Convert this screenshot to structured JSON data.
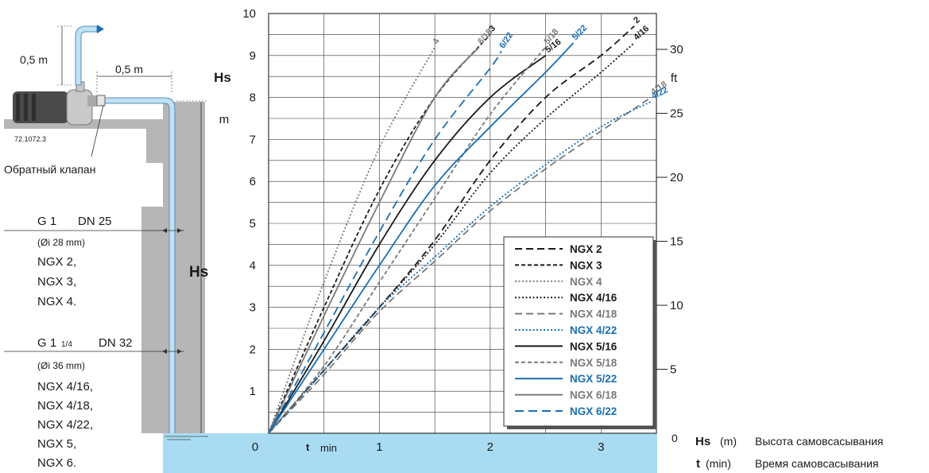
{
  "diagram": {
    "label_vertical_pipe_height": "0,5 m",
    "label_horizontal_pipe_length": "0,5 m",
    "pump_code": "72.1072.3",
    "check_valve_label": "Обратный клапан",
    "hs_label": "Hs",
    "pipe_spec_1": {
      "thread": "G 1",
      "dn": "DN 25",
      "inner_diameter": "(Øi 28 mm)",
      "models": [
        "NGX 2,",
        "NGX 3,",
        "NGX 4."
      ]
    },
    "pipe_spec_2": {
      "thread": "G 1",
      "thread_fraction": "1/4",
      "dn": "DN 32",
      "inner_diameter": "(Øi 36 mm)",
      "models": [
        "NGX 4/16,",
        "NGX 4/18,",
        "NGX 4/22,",
        "NGX 5,",
        "NGX 6."
      ]
    }
  },
  "footer": {
    "hs_symbol": "Hs",
    "hs_unit": "(m)",
    "hs_desc": "Высота самовсасывания",
    "t_symbol": "t",
    "t_unit": "(min)",
    "t_desc": "Время самовсасывания"
  },
  "colors": {
    "black": "#1a1a1a",
    "gray": "#7a7a7a",
    "blue": "#1a6fb5",
    "water": "#a9dcf2",
    "pipe": "#bfe2f4",
    "ground": "#b6b6b6"
  },
  "chart_data": {
    "type": "line",
    "xlabel_symbol": "t",
    "xlabel_unit": "min",
    "ylabel_left_symbol": "Hs",
    "ylabel_left_unit": "m",
    "ylabel_right_unit": "ft",
    "xlim": [
      0,
      3.5
    ],
    "ylim": [
      0,
      10
    ],
    "y2lim": [
      0,
      32.8
    ],
    "x_ticks": [
      "0",
      "1",
      "2",
      "3"
    ],
    "y_ticks": [
      "1",
      "2",
      "3",
      "4",
      "5",
      "6",
      "7",
      "8",
      "9",
      "10"
    ],
    "y2_ticks": [
      "5",
      "10",
      "15",
      "20",
      "25",
      "30"
    ],
    "origin_label": "0",
    "grid": true,
    "legend_position": "bottom-right",
    "series": [
      {
        "name": "NGX 2",
        "end_label": "2",
        "color": "black",
        "dash": "9,5",
        "x": [
          0,
          0.5,
          1,
          1.5,
          2,
          2.5,
          3,
          3.3
        ],
        "y": [
          0,
          1.5,
          3,
          4.6,
          6.5,
          8,
          9,
          9.7
        ]
      },
      {
        "name": "NGX 3",
        "end_label": "3",
        "color": "black",
        "dash": "5,3",
        "x": [
          0,
          0.5,
          1,
          1.5,
          2
        ],
        "y": [
          0,
          3,
          5.8,
          8,
          9.5
        ]
      },
      {
        "name": "NGX 4",
        "end_label": "4",
        "color": "gray",
        "dash": "2,2.5",
        "x": [
          0,
          0.5,
          1,
          1.5
        ],
        "y": [
          0,
          3.6,
          6.8,
          9.2
        ]
      },
      {
        "name": "NGX 4/16",
        "end_label": "4/16",
        "color": "black",
        "dash": "2,2.5",
        "x": [
          0,
          0.5,
          1,
          1.5,
          2,
          2.5,
          3,
          3.3
        ],
        "y": [
          0,
          1.5,
          3,
          4.5,
          6.2,
          7.5,
          8.6,
          9.3
        ]
      },
      {
        "name": "NGX 4/18",
        "end_label": "4/18",
        "color": "gray",
        "dash": "9,5",
        "x": [
          0,
          0.5,
          1,
          1.5,
          2,
          2.5,
          3,
          3.45
        ],
        "y": [
          0,
          1.4,
          2.9,
          4.1,
          5.3,
          6.3,
          7.2,
          8
        ]
      },
      {
        "name": "NGX 4/22",
        "end_label": "4/22",
        "color": "blue",
        "dash": "2,2.5",
        "x": [
          0,
          0.5,
          1,
          1.5,
          2,
          2.5,
          3,
          3.45
        ],
        "y": [
          0,
          1.5,
          3,
          4.2,
          5.4,
          6.4,
          7.3,
          7.9
        ]
      },
      {
        "name": "NGX 5/16",
        "end_label": "5/16",
        "color": "black",
        "dash": "",
        "x": [
          0,
          0.5,
          1,
          1.5,
          2,
          2.5
        ],
        "y": [
          0,
          2.2,
          4.5,
          6.5,
          8,
          9
        ]
      },
      {
        "name": "NGX 5/18",
        "end_label": "5/18",
        "color": "gray",
        "dash": "5,3",
        "x": [
          0,
          0.5,
          1,
          1.5,
          2,
          2.5
        ],
        "y": [
          0,
          1.6,
          3.6,
          5.6,
          7.6,
          9.2
        ]
      },
      {
        "name": "NGX 5/22",
        "end_label": "5/22",
        "color": "blue",
        "dash": "",
        "x": [
          0,
          0.5,
          1,
          1.5,
          2,
          2.5,
          2.75
        ],
        "y": [
          0,
          2,
          4,
          5.9,
          7.3,
          8.6,
          9.3
        ]
      },
      {
        "name": "NGX 6/18",
        "end_label": "6/18",
        "color": "gray",
        "dash": "",
        "x": [
          0,
          0.5,
          1,
          1.5,
          1.9
        ],
        "y": [
          0,
          2.8,
          5.5,
          8,
          9.2
        ]
      },
      {
        "name": "NGX 6/22",
        "end_label": "6/22",
        "color": "blue",
        "dash": "11,6",
        "x": [
          0,
          0.5,
          1,
          1.5,
          2,
          2.1
        ],
        "y": [
          0,
          2.4,
          4.8,
          7,
          8.7,
          9.1
        ]
      }
    ]
  }
}
